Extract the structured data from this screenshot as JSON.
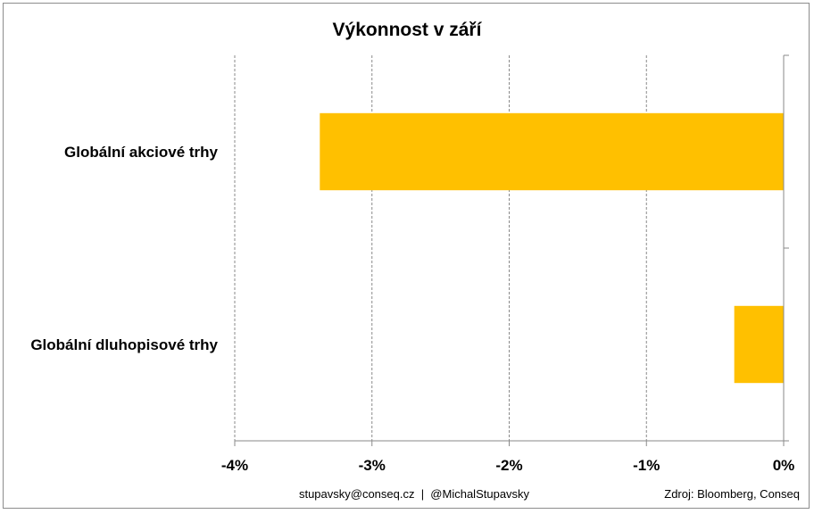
{
  "chart_data": {
    "type": "bar",
    "orientation": "horizontal",
    "title": "Výkonnost v září",
    "categories": [
      "Globální akciové trhy",
      "Globální dluhopisové trhy"
    ],
    "values": [
      -3.38,
      -0.36
    ],
    "unit": "%",
    "xlim": [
      -4,
      0
    ],
    "xticks": [
      -4,
      -3,
      -2,
      -1,
      0
    ],
    "xtick_labels": [
      "-4%",
      "-3%",
      "-2%",
      "-1%",
      "0%"
    ],
    "xlabel": "",
    "ylabel": "",
    "grid": "vertical dashed",
    "legend": "none",
    "bar_color": "#FFC000"
  },
  "footer": {
    "contact": "stupavsky@conseq.cz  |  @MichalStupavsky",
    "source": "Zdroj: Bloomberg, Conseq"
  }
}
